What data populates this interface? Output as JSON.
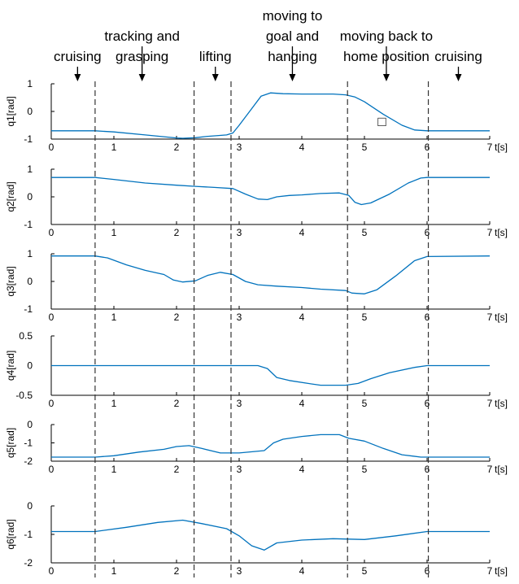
{
  "phase_labels": [
    {
      "lines": [
        "cruising"
      ],
      "time": 0.42
    },
    {
      "lines": [
        "tracking and",
        "grasping"
      ],
      "time": 1.45
    },
    {
      "lines": [
        "lifting"
      ],
      "time": 2.62
    },
    {
      "lines": [
        "moving to",
        "goal and",
        "hanging"
      ],
      "time": 3.85
    },
    {
      "lines": [
        "moving back to",
        "home position"
      ],
      "time": 5.35
    },
    {
      "lines": [
        "cruising"
      ],
      "time": 6.5
    }
  ],
  "chart_data": [
    {
      "type": "line",
      "ylabel": "q1[rad]",
      "xlabel": "t[s]",
      "xlim": [
        0,
        7
      ],
      "ylim": [
        -1,
        1
      ],
      "xticks": [
        "0",
        "1",
        "2",
        "3",
        "4",
        "5",
        "6",
        "7"
      ],
      "yticks": [
        "-1",
        "0",
        "1"
      ],
      "phase_boundaries": [
        0.7,
        2.28,
        2.87,
        4.73,
        6.02
      ],
      "series": [
        {
          "values": [
            [
              0,
              -0.7
            ],
            [
              0.7,
              -0.7
            ],
            [
              1.0,
              -0.74
            ],
            [
              1.5,
              -0.85
            ],
            [
              2.0,
              -0.96
            ],
            [
              2.1,
              -0.97
            ],
            [
              2.3,
              -0.95
            ],
            [
              2.5,
              -0.9
            ],
            [
              2.8,
              -0.85
            ],
            [
              2.9,
              -0.78
            ],
            [
              3.0,
              -0.5
            ],
            [
              3.2,
              0.1
            ],
            [
              3.35,
              0.55
            ],
            [
              3.5,
              0.67
            ],
            [
              3.7,
              0.64
            ],
            [
              4.0,
              0.63
            ],
            [
              4.5,
              0.63
            ],
            [
              4.7,
              0.6
            ],
            [
              4.85,
              0.52
            ],
            [
              5.0,
              0.35
            ],
            [
              5.3,
              -0.1
            ],
            [
              5.6,
              -0.5
            ],
            [
              5.8,
              -0.67
            ],
            [
              6.0,
              -0.7
            ],
            [
              7.0,
              -0.7
            ]
          ]
        }
      ],
      "annotation": "□"
    },
    {
      "type": "line",
      "ylabel": "q2[rad]",
      "xlabel": "t[s]",
      "xlim": [
        0,
        7
      ],
      "ylim": [
        -1,
        1
      ],
      "xticks": [
        "0",
        "1",
        "2",
        "3",
        "4",
        "5",
        "6",
        "7"
      ],
      "yticks": [
        "-1",
        "0",
        "1"
      ],
      "phase_boundaries": [
        0.7,
        2.28,
        2.87,
        4.73,
        6.02
      ],
      "series": [
        {
          "values": [
            [
              0,
              0.7
            ],
            [
              0.7,
              0.7
            ],
            [
              1.0,
              0.63
            ],
            [
              1.5,
              0.5
            ],
            [
              2.0,
              0.42
            ],
            [
              2.3,
              0.38
            ],
            [
              2.6,
              0.34
            ],
            [
              2.9,
              0.3
            ],
            [
              3.1,
              0.1
            ],
            [
              3.3,
              -0.08
            ],
            [
              3.45,
              -0.1
            ],
            [
              3.6,
              0.0
            ],
            [
              3.8,
              0.05
            ],
            [
              4.0,
              0.07
            ],
            [
              4.3,
              0.12
            ],
            [
              4.6,
              0.14
            ],
            [
              4.75,
              0.05
            ],
            [
              4.85,
              -0.2
            ],
            [
              4.95,
              -0.28
            ],
            [
              5.1,
              -0.22
            ],
            [
              5.4,
              0.1
            ],
            [
              5.7,
              0.5
            ],
            [
              5.9,
              0.68
            ],
            [
              6.0,
              0.7
            ],
            [
              7.0,
              0.7
            ]
          ]
        }
      ]
    },
    {
      "type": "line",
      "ylabel": "q3[rad]",
      "xlabel": "t[s]",
      "xlim": [
        0,
        7
      ],
      "ylim": [
        -1,
        1
      ],
      "xticks": [
        "0",
        "1",
        "2",
        "3",
        "4",
        "5",
        "6",
        "7"
      ],
      "yticks": [
        "-1",
        "0",
        "1"
      ],
      "phase_boundaries": [
        0.7,
        2.28,
        2.87,
        4.73,
        6.02
      ],
      "series": [
        {
          "values": [
            [
              0,
              0.92
            ],
            [
              0.7,
              0.92
            ],
            [
              0.9,
              0.85
            ],
            [
              1.2,
              0.6
            ],
            [
              1.5,
              0.4
            ],
            [
              1.8,
              0.25
            ],
            [
              1.95,
              0.05
            ],
            [
              2.1,
              -0.02
            ],
            [
              2.3,
              0.02
            ],
            [
              2.5,
              0.22
            ],
            [
              2.7,
              0.33
            ],
            [
              2.9,
              0.25
            ],
            [
              3.1,
              0.0
            ],
            [
              3.3,
              -0.12
            ],
            [
              3.6,
              -0.17
            ],
            [
              4.0,
              -0.22
            ],
            [
              4.3,
              -0.28
            ],
            [
              4.7,
              -0.33
            ],
            [
              4.8,
              -0.42
            ],
            [
              5.0,
              -0.45
            ],
            [
              5.2,
              -0.3
            ],
            [
              5.5,
              0.2
            ],
            [
              5.8,
              0.75
            ],
            [
              6.0,
              0.9
            ],
            [
              7.0,
              0.92
            ]
          ]
        }
      ]
    },
    {
      "type": "line",
      "ylabel": "q4[rad]",
      "xlabel": "t[s]",
      "xlim": [
        0,
        7
      ],
      "ylim": [
        -0.5,
        0.5
      ],
      "xticks": [
        "0",
        "1",
        "2",
        "3",
        "4",
        "5",
        "6",
        "7"
      ],
      "yticks": [
        "-0.5",
        "0",
        "0.5"
      ],
      "phase_boundaries": [
        0.7,
        2.28,
        2.87,
        4.73,
        6.02
      ],
      "series": [
        {
          "values": [
            [
              0,
              0
            ],
            [
              3.3,
              0
            ],
            [
              3.45,
              -0.05
            ],
            [
              3.6,
              -0.2
            ],
            [
              3.8,
              -0.25
            ],
            [
              4.1,
              -0.3
            ],
            [
              4.3,
              -0.33
            ],
            [
              4.7,
              -0.33
            ],
            [
              4.9,
              -0.3
            ],
            [
              5.1,
              -0.22
            ],
            [
              5.4,
              -0.12
            ],
            [
              5.8,
              -0.03
            ],
            [
              6.0,
              0
            ],
            [
              7.0,
              0
            ]
          ]
        }
      ]
    },
    {
      "type": "line",
      "ylabel": "q5[rad]",
      "xlabel": "t[s]",
      "xlim": [
        0,
        7
      ],
      "ylim": [
        -2,
        0
      ],
      "xticks": [
        "0",
        "1",
        "2",
        "3",
        "4",
        "5",
        "6",
        "7"
      ],
      "yticks": [
        "-2",
        "-1",
        "0"
      ],
      "phase_boundaries": [
        0.7,
        2.28,
        2.87,
        4.73,
        6.02
      ],
      "series": [
        {
          "values": [
            [
              0,
              -1.78
            ],
            [
              0.7,
              -1.78
            ],
            [
              1.0,
              -1.7
            ],
            [
              1.4,
              -1.5
            ],
            [
              1.8,
              -1.35
            ],
            [
              2.0,
              -1.2
            ],
            [
              2.2,
              -1.15
            ],
            [
              2.4,
              -1.3
            ],
            [
              2.7,
              -1.55
            ],
            [
              3.0,
              -1.55
            ],
            [
              3.4,
              -1.42
            ],
            [
              3.55,
              -1.0
            ],
            [
              3.7,
              -0.8
            ],
            [
              4.0,
              -0.65
            ],
            [
              4.3,
              -0.55
            ],
            [
              4.6,
              -0.55
            ],
            [
              4.75,
              -0.75
            ],
            [
              5.0,
              -0.9
            ],
            [
              5.3,
              -1.3
            ],
            [
              5.6,
              -1.65
            ],
            [
              5.9,
              -1.78
            ],
            [
              7.0,
              -1.78
            ]
          ]
        }
      ]
    },
    {
      "type": "line",
      "ylabel": "q6[rad]",
      "xlabel": "t[s]",
      "xlim": [
        0,
        7
      ],
      "ylim": [
        -2,
        0
      ],
      "xticks": [
        "0",
        "1",
        "2",
        "3",
        "4",
        "5",
        "6",
        "7"
      ],
      "yticks": [
        "-2",
        "-1",
        "0"
      ],
      "phase_boundaries": [
        0.7,
        2.28,
        2.87,
        4.73,
        6.02
      ],
      "series": [
        {
          "values": [
            [
              0,
              -0.9
            ],
            [
              0.7,
              -0.9
            ],
            [
              1.2,
              -0.75
            ],
            [
              1.7,
              -0.58
            ],
            [
              2.1,
              -0.5
            ],
            [
              2.4,
              -0.62
            ],
            [
              2.8,
              -0.8
            ],
            [
              3.0,
              -1.05
            ],
            [
              3.2,
              -1.4
            ],
            [
              3.4,
              -1.55
            ],
            [
              3.6,
              -1.3
            ],
            [
              4.0,
              -1.2
            ],
            [
              4.5,
              -1.15
            ],
            [
              5.0,
              -1.18
            ],
            [
              5.5,
              -1.05
            ],
            [
              6.0,
              -0.9
            ],
            [
              7.0,
              -0.9
            ]
          ]
        }
      ]
    }
  ],
  "colors": {
    "line": "#0072BD",
    "axis": "#000000",
    "boundary": "#333333"
  }
}
